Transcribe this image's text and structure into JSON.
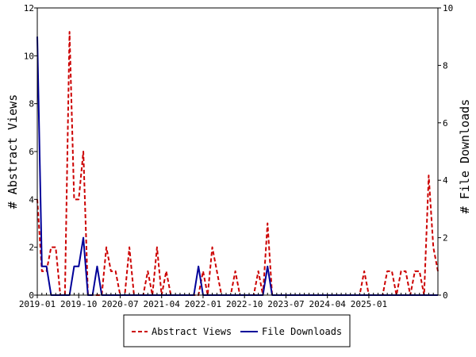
{
  "chart_data": {
    "type": "line",
    "title": "",
    "xlabel": "",
    "ylabel": "# Abstract Views",
    "y2label": "# File Downloads",
    "ylim": [
      0,
      12
    ],
    "y2lim": [
      0,
      10
    ],
    "yticks": [
      0,
      2,
      4,
      6,
      8,
      10,
      12
    ],
    "y2ticks": [
      0,
      2,
      4,
      6,
      8,
      10
    ],
    "x_tick_labels": [
      "2019-01",
      "2019-10",
      "2020-07",
      "2021-04",
      "2022-01",
      "2022-10",
      "2023-07",
      "2024-04",
      "2025-01"
    ],
    "x_start": "2019-01",
    "x_end": "2025-10",
    "grid": false,
    "legend_position": "bottom",
    "series": [
      {
        "name": "Abstract Views",
        "axis": "left",
        "color": "#cc0000",
        "style": "dashed",
        "values": [
          4,
          1,
          1,
          2,
          2,
          0,
          0,
          11,
          4,
          4,
          6,
          0,
          0,
          0,
          0,
          2,
          1,
          1,
          0,
          0,
          2,
          0,
          0,
          0,
          1,
          0,
          2,
          0,
          1,
          0,
          0,
          0,
          0,
          0,
          0,
          0,
          1,
          0,
          2,
          1,
          0,
          0,
          0,
          1,
          0,
          0,
          0,
          0,
          1,
          0,
          3,
          0,
          0,
          0,
          0,
          0,
          0,
          0,
          0,
          0,
          0,
          0,
          0,
          0,
          0,
          0,
          0,
          0,
          0,
          0,
          0,
          1,
          0,
          0,
          0,
          0,
          1,
          1,
          0,
          1,
          1,
          0,
          1,
          1,
          0,
          5,
          2,
          1
        ]
      },
      {
        "name": "File Downloads",
        "axis": "right",
        "color": "#000099",
        "style": "solid",
        "values": [
          9,
          1,
          1,
          0,
          0,
          0,
          0,
          0,
          1,
          1,
          2,
          0,
          0,
          1,
          0,
          0,
          0,
          0,
          0,
          0,
          0,
          0,
          0,
          0,
          0,
          0,
          0,
          0,
          0,
          0,
          0,
          0,
          0,
          0,
          0,
          1,
          0,
          0,
          0,
          0,
          0,
          0,
          0,
          0,
          0,
          0,
          0,
          0,
          0,
          0,
          1,
          0,
          0,
          0,
          0,
          0,
          0,
          0,
          0,
          0,
          0,
          0,
          0,
          0,
          0,
          0,
          0,
          0,
          0,
          0,
          0,
          0,
          0,
          0,
          0,
          0,
          0,
          0,
          0,
          0,
          0,
          0,
          0,
          0,
          0,
          0,
          0,
          0
        ]
      }
    ]
  }
}
